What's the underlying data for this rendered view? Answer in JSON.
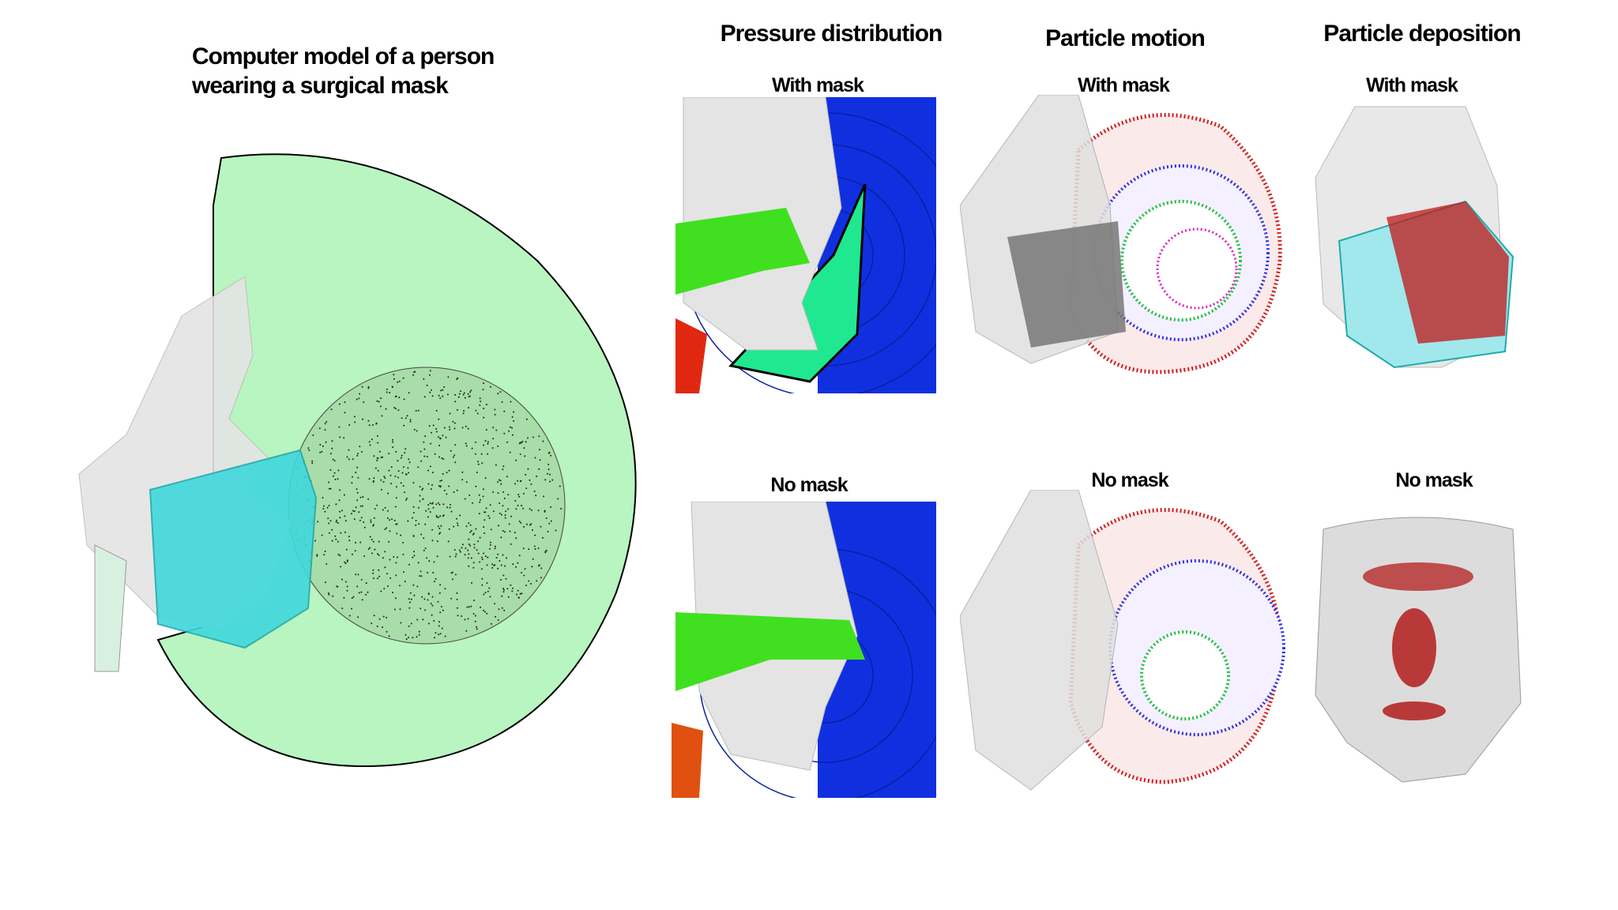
{
  "model": {
    "title_line1": "Computer model of a person",
    "title_line2": "wearing a surgical mask"
  },
  "columns": [
    {
      "title": "Pressure distribution",
      "top_label": "With mask",
      "bottom_label": "No mask"
    },
    {
      "title": "Particle motion",
      "top_label": "With mask",
      "bottom_label": "No mask"
    },
    {
      "title": "Particle deposition",
      "top_label": "With mask",
      "bottom_label": "No mask"
    }
  ],
  "colors": {
    "domain": "#b8f5c0",
    "mask": "#40d8dc",
    "pressure_field": "#1030e0",
    "particles": "#c01010",
    "face": "#d8d8d8"
  }
}
